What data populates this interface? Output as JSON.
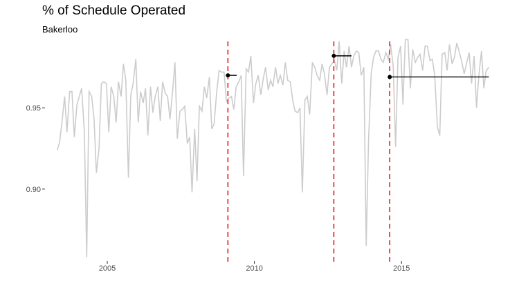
{
  "chart_data": {
    "type": "line",
    "title": "% of Schedule Operated",
    "subtitle": "Bakerloo",
    "xlabel": "",
    "ylabel": "",
    "grid": false,
    "xlim": [
      2003.0,
      2018.1
    ],
    "ylim": [
      0.857,
      0.993
    ],
    "x_ticks": [
      {
        "value": 2005,
        "label": "2005"
      },
      {
        "value": 2010,
        "label": "2010"
      },
      {
        "value": 2015,
        "label": "2015"
      }
    ],
    "y_ticks": [
      {
        "value": 0.9,
        "label": "0.90"
      },
      {
        "value": 0.95,
        "label": "0.95"
      }
    ],
    "series": [
      {
        "role": "monthly",
        "color": "#cccccc",
        "x": [
          2003.3,
          2003.38,
          2003.47,
          2003.55,
          2003.63,
          2003.72,
          2003.8,
          2003.88,
          2003.97,
          2004.05,
          2004.13,
          2004.22,
          2004.3,
          2004.38,
          2004.47,
          2004.55,
          2004.63,
          2004.72,
          2004.8,
          2004.88,
          2004.97,
          2005.05,
          2005.13,
          2005.22,
          2005.3,
          2005.38,
          2005.47,
          2005.55,
          2005.63,
          2005.72,
          2005.8,
          2005.88,
          2005.97,
          2006.05,
          2006.13,
          2006.22,
          2006.3,
          2006.38,
          2006.47,
          2006.55,
          2006.63,
          2006.72,
          2006.8,
          2006.88,
          2006.97,
          2007.05,
          2007.13,
          2007.22,
          2007.3,
          2007.38,
          2007.47,
          2007.55,
          2007.63,
          2007.72,
          2007.8,
          2007.88,
          2007.97,
          2008.05,
          2008.13,
          2008.22,
          2008.3,
          2008.38,
          2008.47,
          2008.55,
          2008.63,
          2008.72,
          2008.8,
          2008.88,
          2008.97,
          2009.05,
          2009.13,
          2009.22,
          2009.3,
          2009.38,
          2009.47,
          2009.55,
          2009.63,
          2009.72,
          2009.8,
          2009.88,
          2009.97,
          2010.05,
          2010.13,
          2010.22,
          2010.3,
          2010.38,
          2010.47,
          2010.55,
          2010.63,
          2010.72,
          2010.8,
          2010.88,
          2010.97,
          2011.05,
          2011.13,
          2011.22,
          2011.3,
          2011.38,
          2011.47,
          2011.55,
          2011.63,
          2011.72,
          2011.8,
          2011.88,
          2011.97,
          2012.05,
          2012.13,
          2012.22,
          2012.3,
          2012.38,
          2012.47,
          2012.55,
          2012.63,
          2012.72,
          2012.8,
          2012.88,
          2012.97,
          2013.05,
          2013.13,
          2013.22,
          2013.3,
          2013.38,
          2013.47,
          2013.55,
          2013.63,
          2013.72,
          2013.8,
          2013.88,
          2013.97,
          2014.05,
          2014.13,
          2014.22,
          2014.3,
          2014.38,
          2014.47,
          2014.55,
          2014.63,
          2014.72,
          2014.8,
          2014.88,
          2014.97,
          2015.05,
          2015.13,
          2015.22,
          2015.3,
          2015.38,
          2015.47,
          2015.55,
          2015.63,
          2015.72,
          2015.8,
          2015.88,
          2015.97,
          2016.05,
          2016.13,
          2016.22,
          2016.3,
          2016.38,
          2016.47,
          2016.55,
          2016.63,
          2016.72,
          2016.8,
          2016.88,
          2016.97,
          2017.05,
          2017.13,
          2017.22,
          2017.3,
          2017.38,
          2017.47,
          2017.55,
          2017.63,
          2017.72,
          2017.8,
          2017.88,
          2017.97
        ],
        "y": [
          0.924,
          0.929,
          0.943,
          0.957,
          0.935,
          0.96,
          0.96,
          0.932,
          0.952,
          0.957,
          0.962,
          0.935,
          0.858,
          0.96,
          0.957,
          0.943,
          0.91,
          0.925,
          0.965,
          0.966,
          0.965,
          0.935,
          0.963,
          0.957,
          0.941,
          0.966,
          0.957,
          0.977,
          0.967,
          0.907,
          0.958,
          0.965,
          0.98,
          0.941,
          0.96,
          0.953,
          0.962,
          0.933,
          0.963,
          0.947,
          0.957,
          0.963,
          0.942,
          0.966,
          0.959,
          0.957,
          0.943,
          0.96,
          0.978,
          0.931,
          0.948,
          0.949,
          0.951,
          0.928,
          0.932,
          0.898,
          0.937,
          0.905,
          0.951,
          0.948,
          0.963,
          0.956,
          0.969,
          0.937,
          0.94,
          0.96,
          0.973,
          0.972,
          0.972,
          0.954,
          0.956,
          0.957,
          0.949,
          0.963,
          0.966,
          0.97,
          0.908,
          0.974,
          0.972,
          0.982,
          0.953,
          0.965,
          0.97,
          0.958,
          0.968,
          0.975,
          0.961,
          0.967,
          0.963,
          0.975,
          0.965,
          0.97,
          0.964,
          0.978,
          0.967,
          0.966,
          0.955,
          0.948,
          0.947,
          0.95,
          0.898,
          0.955,
          0.957,
          0.946,
          0.978,
          0.975,
          0.97,
          0.967,
          0.977,
          0.971,
          0.958,
          0.975,
          0.977,
          0.979,
          0.973,
          0.991,
          0.965,
          0.985,
          0.975,
          0.988,
          0.975,
          0.982,
          0.985,
          0.984,
          0.97,
          0.975,
          0.865,
          0.93,
          0.971,
          0.981,
          0.985,
          0.985,
          0.98,
          0.978,
          0.984,
          0.98,
          0.989,
          0.975,
          0.926,
          0.981,
          0.988,
          0.952,
          0.992,
          0.992,
          0.962,
          0.986,
          0.978,
          0.981,
          0.983,
          0.973,
          0.988,
          0.988,
          0.979,
          0.98,
          0.97,
          0.938,
          0.933,
          0.983,
          0.984,
          0.973,
          0.989,
          0.977,
          0.981,
          0.99,
          0.984,
          0.978,
          0.971,
          0.978,
          0.984,
          0.965,
          0.982,
          0.95,
          0.97,
          0.985,
          0.962,
          0.973,
          0.975
        ]
      },
      {
        "role": "period-average",
        "color": "#000000",
        "segments": [
          {
            "x_start": 2009.1,
            "x_end": 2009.4,
            "y": 0.97
          },
          {
            "x_start": 2012.7,
            "x_end": 2013.3,
            "y": 0.982
          },
          {
            "x_start": 2014.6,
            "x_end": 2017.97,
            "y": 0.969
          }
        ]
      }
    ],
    "reference_lines": [
      {
        "axis": "x",
        "value": 2009.1,
        "color": "#e31a1c",
        "style": "dashed"
      },
      {
        "axis": "x",
        "value": 2012.7,
        "color": "#e31a1c",
        "style": "dashed"
      },
      {
        "axis": "x",
        "value": 2014.6,
        "color": "#e31a1c",
        "style": "dashed"
      }
    ]
  }
}
